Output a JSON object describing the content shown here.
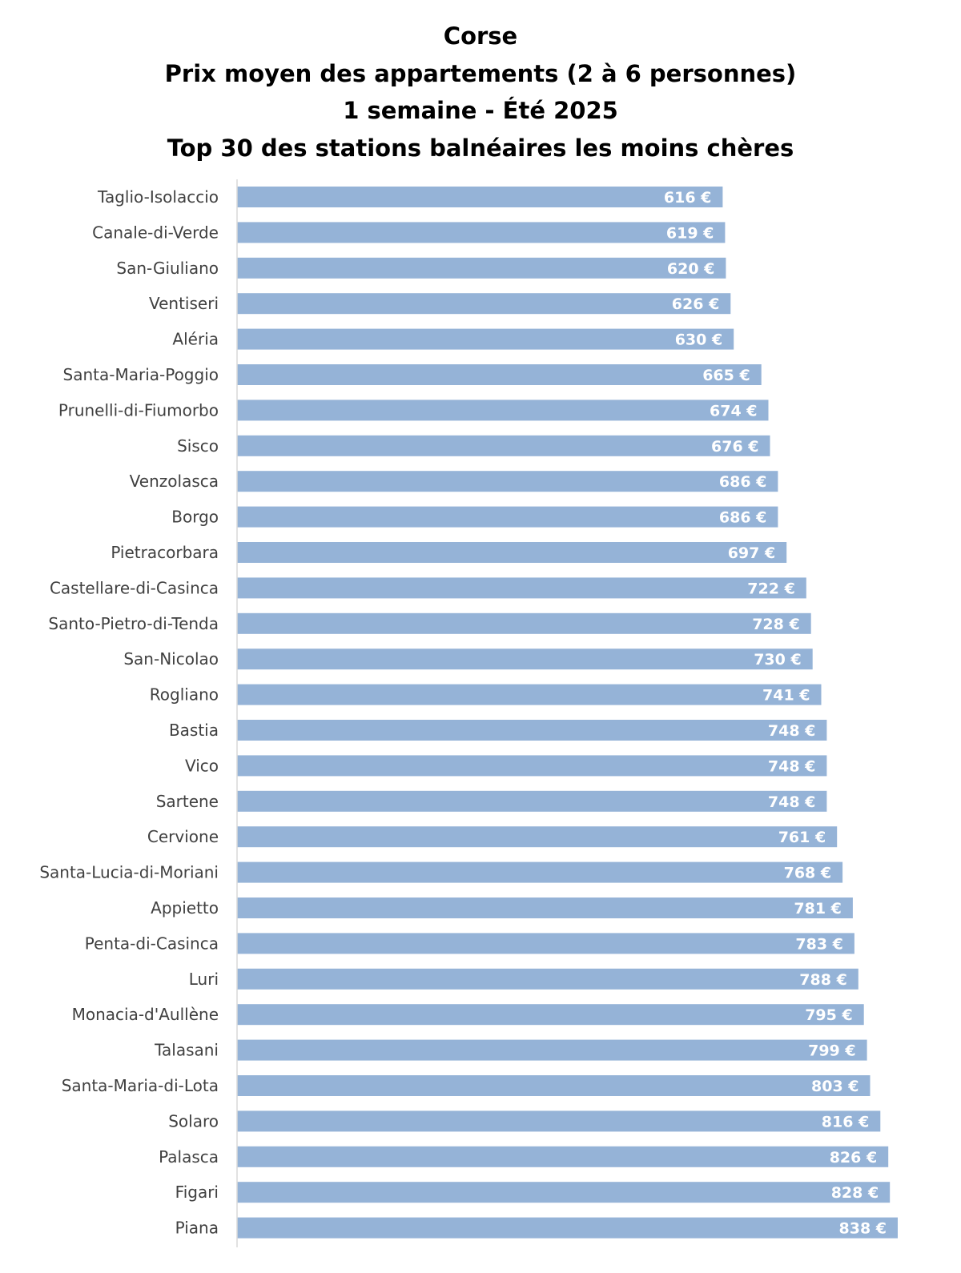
{
  "chart_data": {
    "type": "bar",
    "orientation": "horizontal",
    "title_lines": [
      "Corse",
      "Prix moyen des appartements (2 à 6 personnes)",
      "1 semaine - Été 2025",
      "Top 30 des stations balnéaires les moins chères"
    ],
    "bar_color": "#95b3d7",
    "value_suffix": " €",
    "xlim": [
      0,
      838
    ],
    "grid": false,
    "categories": [
      "Taglio-Isolaccio",
      "Canale-di-Verde",
      "San-Giuliano",
      "Ventiseri",
      "Aléria",
      "Santa-Maria-Poggio",
      "Prunelli-di-Fiumorbo",
      "Sisco",
      "Venzolasca",
      "Borgo",
      "Pietracorbara",
      "Castellare-di-Casinca",
      "Santo-Pietro-di-Tenda",
      "San-Nicolao",
      "Rogliano",
      "Bastia",
      "Vico",
      "Sartene",
      "Cervione",
      "Santa-Lucia-di-Moriani",
      "Appietto",
      "Penta-di-Casinca",
      "Luri",
      "Monacia-d'Aullène",
      "Talasani",
      "Santa-Maria-di-Lota",
      "Solaro",
      "Palasca",
      "Figari",
      "Piana"
    ],
    "values": [
      616,
      619,
      620,
      626,
      630,
      665,
      674,
      676,
      686,
      686,
      697,
      722,
      728,
      730,
      741,
      748,
      748,
      748,
      761,
      768,
      781,
      783,
      788,
      795,
      799,
      803,
      816,
      826,
      828,
      838
    ]
  }
}
